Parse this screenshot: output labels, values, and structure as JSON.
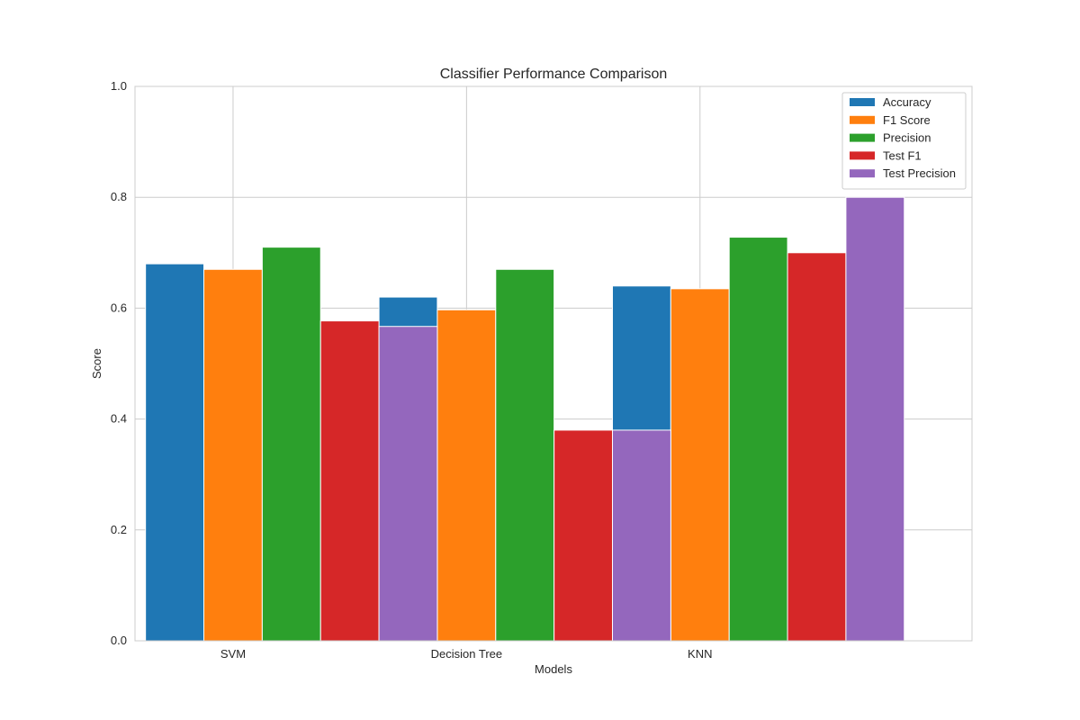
{
  "chart_data": {
    "type": "bar",
    "title": "Classifier Performance Comparison",
    "xlabel": "Models",
    "ylabel": "Score",
    "ylim": [
      0,
      1.0
    ],
    "yticks": [
      "0.0",
      "0.2",
      "0.4",
      "0.6",
      "0.8",
      "1.0"
    ],
    "categories": [
      "SVM",
      "Decision Tree",
      "KNN"
    ],
    "grid": true,
    "legend_position": "top-right",
    "series": [
      {
        "name": "Accuracy",
        "color": "#1f77b4",
        "values": [
          0.68,
          0.62,
          0.64
        ]
      },
      {
        "name": "F1 Score",
        "color": "#ff7f0e",
        "values": [
          0.67,
          0.597,
          0.635
        ]
      },
      {
        "name": "Precision",
        "color": "#2ca02c",
        "values": [
          0.71,
          0.67,
          0.728
        ]
      },
      {
        "name": "Test F1",
        "color": "#d62728",
        "values": [
          0.577,
          0.38,
          0.7
        ]
      },
      {
        "name": "Test Precision",
        "color": "#9467bd",
        "values": [
          0.567,
          0.38,
          0.8
        ]
      }
    ]
  }
}
